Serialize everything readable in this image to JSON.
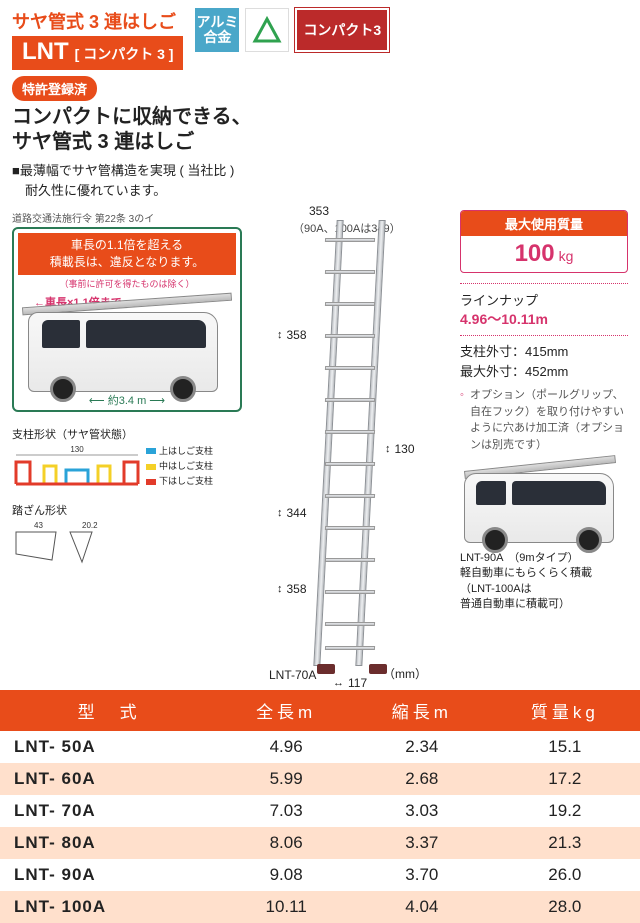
{
  "header": {
    "model_line": "サヤ管式 3 連はしご",
    "lnt": "LNT",
    "lnt_sub": "[ コンパクト 3 ]",
    "badge_alumi_l1": "アルミ",
    "badge_alumi_l2": "合金",
    "badge_compact3": "コンパクト3"
  },
  "tag_patent": "特許登録済",
  "headline_l1": "コンパクトに収納できる、",
  "headline_l2": "サヤ管式 3 連はしご",
  "subtext_l1": "■最薄幅でサヤ管構造を実現 ( 当社比 )",
  "subtext_l2": "　耐久性に優れています。",
  "warning": {
    "law": "道路交通法施行令 第22条 3のイ",
    "inner_l1": "車長の1.1倍を超える",
    "inner_l2": "積載長は、違反となります。",
    "note": "（事前に許可を得たものは除く）",
    "len_label": "車長×1.1倍まで",
    "van_dim": "約3.4 m"
  },
  "cross_section": {
    "label": "支柱形状（サヤ管状態）",
    "width": "130",
    "legend_top": "上はしご支柱",
    "legend_mid": "中はしご支柱",
    "legend_bot": "下はしご支柱",
    "color_top": "#2aa3d8",
    "color_mid": "#f4d027",
    "color_bot": "#e23b2a"
  },
  "step": {
    "label": "踏ざん形状",
    "w1": "43",
    "w2": "20.2"
  },
  "ladder": {
    "top_w": "353",
    "top_note": "（90A、100Aは349）",
    "d1": "358",
    "d2": "130",
    "d3": "344",
    "d4": "358",
    "bottom_w": "117",
    "unit": "（mm）",
    "model": "LNT-70A"
  },
  "right": {
    "max_load_h": "最大使用質量",
    "max_load_v": "100",
    "max_load_u": "kg",
    "lineup_h": "ラインナップ",
    "lineup_v": "4.96〜10.11m",
    "spec_l1": "支柱外寸：415mm",
    "spec_l2": "最大外寸：452mm",
    "option": "オプション（ポールグリップ、自在フック）を取り付けやすいように穴あけ加工済（オプションは別売です）",
    "van2_c1": "LNT-90A　（9mタイプ）",
    "van2_c2": "軽自動車にもらくらく積載",
    "van2_c3": "（LNT-100Aは",
    "van2_c4": "普通自動車に積載可）"
  },
  "table": {
    "headers": [
      "型　式",
      "全長m",
      "縮長m",
      "質量kg"
    ],
    "rows": [
      [
        "LNT- 50A",
        "4.96",
        "2.34",
        "15.1"
      ],
      [
        "LNT- 60A",
        "5.99",
        "2.68",
        "17.2"
      ],
      [
        "LNT- 70A",
        "7.03",
        "3.03",
        "19.2"
      ],
      [
        "LNT- 80A",
        "8.06",
        "3.37",
        "21.3"
      ],
      [
        "LNT- 90A",
        "9.08",
        "3.70",
        "26.0"
      ],
      [
        "LNT- 100A",
        "10.11",
        "4.04",
        "28.0"
      ]
    ]
  },
  "colors": {
    "accent": "#e84c1a",
    "pink": "#d6336c",
    "green": "#2a7a55",
    "stripe": "#ffe0cc"
  }
}
